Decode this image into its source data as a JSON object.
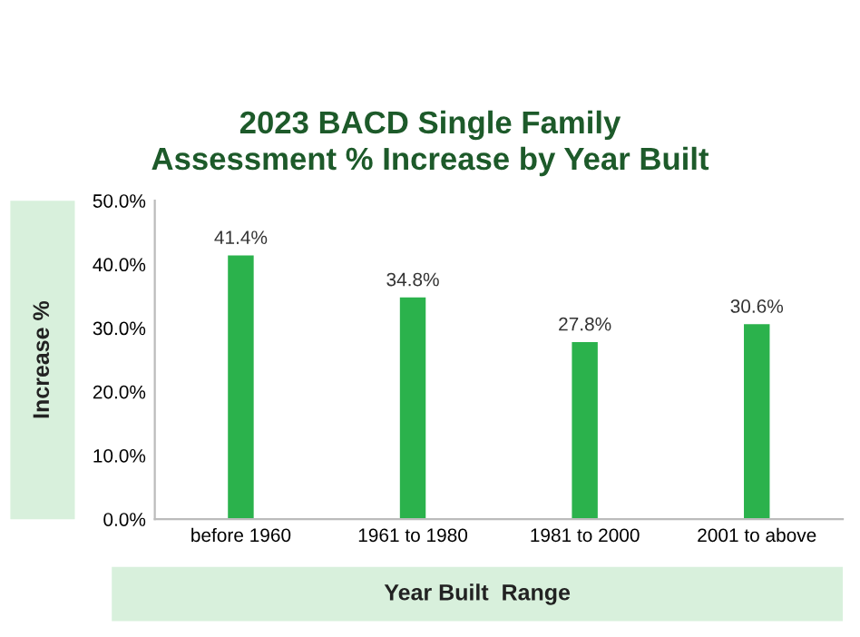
{
  "chart_data": {
    "type": "bar",
    "title": "2023 BACD Single Family\nAssessment % Increase by Year Built",
    "xlabel": "Year Built  Range",
    "ylabel": "Increase %",
    "categories": [
      "before 1960",
      "1961 to 1980",
      "1981 to 2000",
      "2001 to above"
    ],
    "values": [
      41.4,
      34.8,
      27.8,
      30.6
    ],
    "value_labels": [
      "41.4%",
      "34.8%",
      "27.8%",
      "30.6%"
    ],
    "color": "#2bb24c",
    "ylim": [
      0,
      50
    ],
    "yticks": [
      {
        "value": 0,
        "label": "0.0%"
      },
      {
        "value": 10,
        "label": "10.0%"
      },
      {
        "value": 20,
        "label": "20.0%"
      },
      {
        "value": 30,
        "label": "30.0%"
      },
      {
        "value": 40,
        "label": "40.0%"
      },
      {
        "value": 50,
        "label": "50.0%"
      }
    ],
    "grid": false
  }
}
